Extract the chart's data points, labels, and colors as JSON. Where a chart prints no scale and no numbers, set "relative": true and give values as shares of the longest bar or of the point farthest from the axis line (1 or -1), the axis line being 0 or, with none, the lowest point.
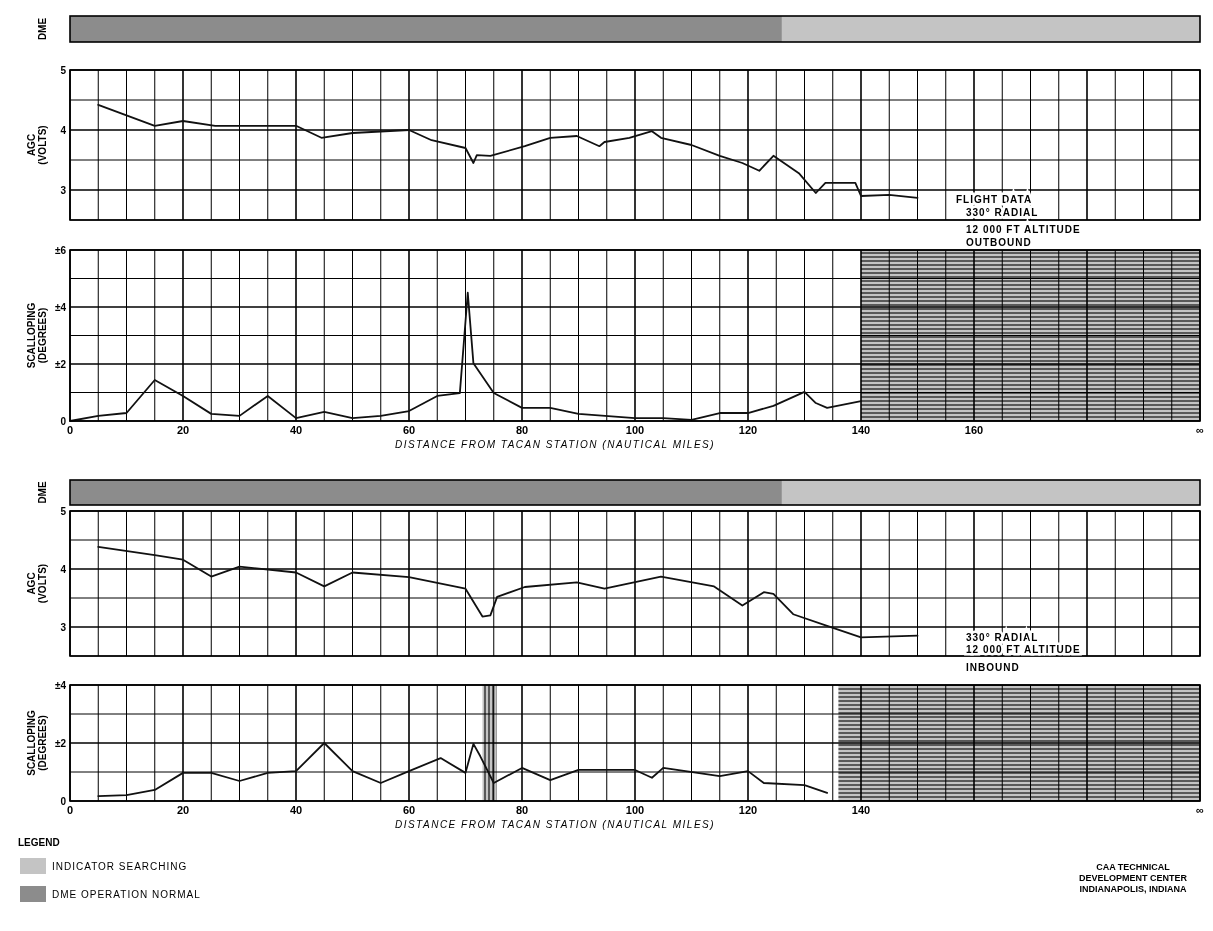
{
  "chart_data": [
    {
      "type": "bar",
      "orientation": "horizontal",
      "stacked": true,
      "relative": true,
      "ylabel": "DME",
      "categories": [
        null
      ],
      "legend": "bottom left",
      "legend_title": "LEGEND",
      "series": [
        {
          "name": "DME OPERATION NORMAL",
          "color": "#8c8c8c",
          "values": [
            0.63
          ]
        },
        {
          "name": "INDICATOR SEARCHING",
          "color": "#c4c4c4",
          "values": [
            0.37
          ]
        }
      ]
    },
    {
      "type": "line",
      "ylabel": "AGC (VOLTS)",
      "xlim": [
        0,
        200
      ],
      "ylim": [
        2.5,
        5
      ],
      "grid": true,
      "tick_labels": "y",
      "marker": "none",
      "line_style": "solid",
      "xticks": [
        {
          "value": 0,
          "label": null
        },
        {
          "value": 5,
          "label": null
        },
        {
          "value": 10,
          "label": null
        },
        {
          "value": 15,
          "label": null
        },
        {
          "value": 20,
          "label": null
        },
        {
          "value": 25,
          "label": null
        },
        {
          "value": 30,
          "label": null
        },
        {
          "value": 35,
          "label": null
        },
        {
          "value": 40,
          "label": null
        },
        {
          "value": 45,
          "label": null
        },
        {
          "value": 50,
          "label": null
        },
        {
          "value": 55,
          "label": null
        },
        {
          "value": 60,
          "label": null
        },
        {
          "value": 65,
          "label": null
        },
        {
          "value": 70,
          "label": null
        },
        {
          "value": 75,
          "label": null
        },
        {
          "value": 80,
          "label": null
        },
        {
          "value": 85,
          "label": null
        },
        {
          "value": 90,
          "label": null
        },
        {
          "value": 95,
          "label": null
        },
        {
          "value": 100,
          "label": null
        },
        {
          "value": 105,
          "label": null
        },
        {
          "value": 110,
          "label": null
        },
        {
          "value": 115,
          "label": null
        },
        {
          "value": 120,
          "label": null
        },
        {
          "value": 125,
          "label": null
        },
        {
          "value": 130,
          "label": null
        },
        {
          "value": 135,
          "label": null
        },
        {
          "value": 140,
          "label": null
        },
        {
          "value": 145,
          "label": null
        },
        {
          "value": 150,
          "label": null
        },
        {
          "value": 155,
          "label": null
        },
        {
          "value": 160,
          "label": null
        },
        {
          "value": 165,
          "label": null
        },
        {
          "value": 170,
          "label": null
        },
        {
          "value": 175,
          "label": null
        },
        {
          "value": 180,
          "label": null
        },
        {
          "value": 185,
          "label": null
        },
        {
          "value": 190,
          "label": null
        },
        {
          "value": 195,
          "label": null
        },
        {
          "value": 200,
          "label": null
        }
      ],
      "yticks": [
        {
          "value": 2.5,
          "label": null
        },
        3,
        {
          "value": 3.5,
          "label": null
        },
        4,
        {
          "value": 4.5,
          "label": null
        },
        5
      ],
      "annotations": [
        "FLIGHT DATA",
        "330° RADIAL",
        "12 000 FT ALTITUDE",
        "OUTBOUND"
      ],
      "series": [
        {
          "color": "#111111",
          "x": [
            5,
            15,
            20,
            25.7,
            40,
            44.5,
            50,
            60,
            64,
            70,
            71.4,
            72,
            74.4,
            80.5,
            85,
            89.7,
            93.7,
            94.6,
            99,
            103,
            104.6,
            110,
            115,
            119,
            122,
            124.5,
            129,
            132,
            133.7,
            139,
            140,
            145,
            150
          ],
          "values": [
            4.42,
            4.07,
            4.15,
            4.07,
            4.07,
            3.87,
            3.95,
            4.0,
            3.83,
            3.7,
            3.45,
            3.58,
            3.57,
            3.73,
            3.87,
            3.9,
            3.73,
            3.8,
            3.87,
            3.98,
            3.87,
            3.75,
            3.57,
            3.45,
            3.32,
            3.57,
            3.28,
            2.95,
            3.12,
            3.12,
            2.9,
            2.92,
            2.87
          ]
        }
      ]
    },
    {
      "type": "line",
      "ylabel": "SCALLOPING (DEGREES)",
      "xlabel": "DISTANCE FROM TACAN STATION (NAUTICAL MILES)",
      "xlim": [
        0,
        200
      ],
      "ylim": [
        0,
        6
      ],
      "grid": true,
      "marker": "none",
      "line_style": "solid",
      "xticks": [
        0,
        {
          "value": 5,
          "label": null
        },
        {
          "value": 10,
          "label": null
        },
        {
          "value": 15,
          "label": null
        },
        20,
        {
          "value": 25,
          "label": null
        },
        {
          "value": 30,
          "label": null
        },
        {
          "value": 35,
          "label": null
        },
        40,
        {
          "value": 45,
          "label": null
        },
        {
          "value": 50,
          "label": null
        },
        {
          "value": 55,
          "label": null
        },
        60,
        {
          "value": 65,
          "label": null
        },
        {
          "value": 70,
          "label": null
        },
        {
          "value": 75,
          "label": null
        },
        80,
        {
          "value": 85,
          "label": null
        },
        {
          "value": 90,
          "label": null
        },
        {
          "value": 95,
          "label": null
        },
        100,
        {
          "value": 105,
          "label": null
        },
        {
          "value": 110,
          "label": null
        },
        {
          "value": 115,
          "label": null
        },
        120,
        {
          "value": 125,
          "label": null
        },
        {
          "value": 130,
          "label": null
        },
        {
          "value": 135,
          "label": null
        },
        140,
        {
          "value": 145,
          "label": null
        },
        {
          "value": 150,
          "label": null
        },
        {
          "value": 155,
          "label": null
        },
        160,
        {
          "value": 165,
          "label": null
        },
        {
          "value": 170,
          "label": null
        },
        {
          "value": 175,
          "label": null
        },
        {
          "value": 180,
          "label": null
        },
        {
          "value": 185,
          "label": null
        },
        {
          "value": 190,
          "label": null
        },
        {
          "value": 195,
          "label": null
        },
        {
          "value": 200,
          "label": "∞"
        }
      ],
      "yticks": [
        0,
        {
          "value": 1,
          "label": null
        },
        {
          "value": 2,
          "label": "±2"
        },
        {
          "value": 3,
          "label": null
        },
        {
          "value": 4,
          "label": "±4"
        },
        {
          "value": 5,
          "label": null
        },
        {
          "value": 6,
          "label": "±6"
        }
      ],
      "bands": [
        {
          "axis": "x",
          "from": 140,
          "to": 200,
          "color": "#c4c4c4"
        }
      ],
      "series": [
        {
          "color": "#111111",
          "x": [
            0,
            5,
            10,
            15,
            20,
            25,
            30,
            35,
            40,
            45,
            50,
            55,
            60,
            65,
            69,
            70.4,
            71.4,
            75,
            80,
            85,
            90,
            100,
            105,
            110,
            115,
            120,
            124.5,
            130,
            132,
            134,
            140
          ],
          "values": [
            0,
            0.18,
            0.28,
            1.44,
            0.88,
            0.25,
            0.18,
            0.88,
            0.1,
            0.32,
            0.1,
            0.18,
            0.35,
            0.88,
            0.98,
            4.5,
            2.03,
            0.98,
            0.46,
            0.46,
            0.25,
            0.1,
            0.1,
            0.04,
            0.28,
            0.28,
            0.53,
            1.02,
            0.63,
            0.46,
            0.7
          ]
        }
      ]
    },
    {
      "type": "bar",
      "orientation": "horizontal",
      "stacked": true,
      "relative": true,
      "ylabel": "DME",
      "categories": [
        null
      ],
      "series": [
        {
          "color": "#8c8c8c",
          "values": [
            0.63
          ]
        },
        {
          "color": "#c4c4c4",
          "values": [
            0.37
          ]
        }
      ]
    },
    {
      "type": "line",
      "ylabel": "AGC (VOLTS)",
      "xlim": [
        0,
        200
      ],
      "ylim": [
        2.5,
        5
      ],
      "grid": true,
      "tick_labels": "y",
      "marker": "none",
      "line_style": "solid",
      "xticks": [
        {
          "value": 0,
          "label": null
        },
        {
          "value": 5,
          "label": null
        },
        {
          "value": 10,
          "label": null
        },
        {
          "value": 15,
          "label": null
        },
        {
          "value": 20,
          "label": null
        },
        {
          "value": 25,
          "label": null
        },
        {
          "value": 30,
          "label": null
        },
        {
          "value": 35,
          "label": null
        },
        {
          "value": 40,
          "label": null
        },
        {
          "value": 45,
          "label": null
        },
        {
          "value": 50,
          "label": null
        },
        {
          "value": 55,
          "label": null
        },
        {
          "value": 60,
          "label": null
        },
        {
          "value": 65,
          "label": null
        },
        {
          "value": 70,
          "label": null
        },
        {
          "value": 75,
          "label": null
        },
        {
          "value": 80,
          "label": null
        },
        {
          "value": 85,
          "label": null
        },
        {
          "value": 90,
          "label": null
        },
        {
          "value": 95,
          "label": null
        },
        {
          "value": 100,
          "label": null
        },
        {
          "value": 105,
          "label": null
        },
        {
          "value": 110,
          "label": null
        },
        {
          "value": 115,
          "label": null
        },
        {
          "value": 120,
          "label": null
        },
        {
          "value": 125,
          "label": null
        },
        {
          "value": 130,
          "label": null
        },
        {
          "value": 135,
          "label": null
        },
        {
          "value": 140,
          "label": null
        },
        {
          "value": 145,
          "label": null
        },
        {
          "value": 150,
          "label": null
        },
        {
          "value": 155,
          "label": null
        },
        {
          "value": 160,
          "label": null
        },
        {
          "value": 165,
          "label": null
        },
        {
          "value": 170,
          "label": null
        },
        {
          "value": 175,
          "label": null
        },
        {
          "value": 180,
          "label": null
        },
        {
          "value": 185,
          "label": null
        },
        {
          "value": 190,
          "label": null
        },
        {
          "value": 195,
          "label": null
        },
        {
          "value": 200,
          "label": null
        }
      ],
      "yticks": [
        {
          "value": 2.5,
          "label": null
        },
        3,
        {
          "value": 3.5,
          "label": null
        },
        4,
        {
          "value": 4.5,
          "label": null
        },
        5
      ],
      "annotations": [
        "330° RADIAL",
        "12 000 FT ALTITUDE",
        "INBOUND"
      ],
      "series": [
        {
          "color": "#111111",
          "x": [
            5,
            15,
            20,
            25,
            30,
            40,
            45,
            50,
            60,
            70,
            73,
            74.4,
            75.6,
            80.5,
            89.7,
            94.6,
            104.6,
            114,
            119,
            122.8,
            124.5,
            128,
            134,
            140,
            150
          ],
          "values": [
            4.38,
            4.24,
            4.16,
            3.87,
            4.04,
            3.94,
            3.7,
            3.94,
            3.86,
            3.66,
            3.18,
            3.2,
            3.52,
            3.69,
            3.77,
            3.66,
            3.87,
            3.7,
            3.37,
            3.6,
            3.57,
            3.22,
            3.02,
            2.82,
            2.85
          ]
        }
      ]
    },
    {
      "type": "line",
      "ylabel": "SCALLOPING (DEGREES)",
      "xlabel": "DISTANCE FROM TACAN STATION (NAUTICAL MILES)",
      "xlim": [
        0,
        200
      ],
      "ylim": [
        0,
        4
      ],
      "grid": true,
      "marker": "none",
      "line_style": "solid",
      "xticks": [
        0,
        {
          "value": 5,
          "label": null
        },
        {
          "value": 10,
          "label": null
        },
        {
          "value": 15,
          "label": null
        },
        20,
        {
          "value": 25,
          "label": null
        },
        {
          "value": 30,
          "label": null
        },
        {
          "value": 35,
          "label": null
        },
        40,
        {
          "value": 45,
          "label": null
        },
        {
          "value": 50,
          "label": null
        },
        {
          "value": 55,
          "label": null
        },
        60,
        {
          "value": 65,
          "label": null
        },
        {
          "value": 70,
          "label": null
        },
        {
          "value": 75,
          "label": null
        },
        80,
        {
          "value": 85,
          "label": null
        },
        {
          "value": 90,
          "label": null
        },
        {
          "value": 95,
          "label": null
        },
        100,
        {
          "value": 105,
          "label": null
        },
        {
          "value": 110,
          "label": null
        },
        {
          "value": 115,
          "label": null
        },
        120,
        {
          "value": 125,
          "label": null
        },
        {
          "value": 130,
          "label": null
        },
        {
          "value": 135,
          "label": null
        },
        140,
        {
          "value": 145,
          "label": null
        },
        {
          "value": 150,
          "label": null
        },
        {
          "value": 155,
          "label": null
        },
        {
          "value": 160,
          "label": null
        },
        {
          "value": 165,
          "label": null
        },
        {
          "value": 170,
          "label": null
        },
        {
          "value": 175,
          "label": null
        },
        {
          "value": 180,
          "label": null
        },
        {
          "value": 185,
          "label": null
        },
        {
          "value": 190,
          "label": null
        },
        {
          "value": 195,
          "label": null
        },
        {
          "value": 200,
          "label": "∞"
        }
      ],
      "yticks": [
        0,
        {
          "value": 1,
          "label": null
        },
        {
          "value": 2,
          "label": "±2"
        },
        {
          "value": 3,
          "label": null
        },
        {
          "value": 4,
          "label": "±4"
        }
      ],
      "bands": [
        {
          "axis": "x",
          "from": 73,
          "to": 75.5,
          "color": "#c4c4c4"
        },
        {
          "axis": "x",
          "from": 136,
          "to": 200,
          "color": "#c4c4c4"
        }
      ],
      "annotations": [
        "CAA TECHNICAL DEVELOPMENT CENTER INDIANAPOLIS, INDIANA"
      ],
      "series": [
        {
          "color": "#111111",
          "x": [
            5,
            10,
            15,
            20,
            25,
            30,
            35,
            40,
            45,
            50,
            55,
            60,
            65.6,
            70,
            71.4,
            72.6,
            75,
            80,
            85,
            90,
            100,
            103,
            105,
            115,
            120,
            122.8,
            130,
            134
          ],
          "values": [
            0.17,
            0.2,
            0.38,
            0.97,
            0.97,
            0.69,
            0.97,
            1.03,
            2.0,
            1.03,
            0.62,
            1.03,
            1.48,
            0.97,
            1.97,
            1.55,
            0.62,
            1.14,
            0.72,
            1.07,
            1.07,
            0.8,
            1.14,
            0.86,
            1.03,
            0.62,
            0.55,
            0.28
          ]
        }
      ]
    }
  ]
}
